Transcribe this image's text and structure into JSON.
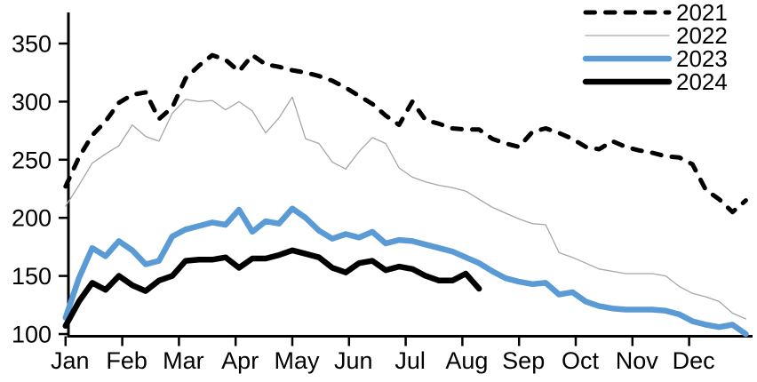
{
  "chart_data": {
    "type": "line",
    "title": "",
    "xlabel": "",
    "ylabel": "",
    "x_resolution": "weekly",
    "x_axis": {
      "months": [
        "Jan",
        "Feb",
        "Mar",
        "Apr",
        "May",
        "Jun",
        "Jul",
        "Aug",
        "Sep",
        "Oct",
        "Nov",
        "Dec"
      ]
    },
    "y_axis": {
      "min": 100,
      "max": 350,
      "ticks": [
        350,
        300,
        250,
        200,
        150,
        100
      ]
    },
    "grid": "off",
    "legend": {
      "position": "top-right",
      "entries": [
        "2021",
        "2022",
        "2023",
        "2024"
      ]
    },
    "series": [
      {
        "name": "2021",
        "color": "#000000",
        "style": "dashed",
        "width": 5,
        "values": [
          227,
          252,
          271,
          283,
          299,
          306,
          308,
          285,
          295,
          320,
          331,
          340,
          336,
          326,
          340,
          332,
          330,
          327,
          325,
          322,
          318,
          312,
          305,
          298,
          288,
          280,
          300,
          284,
          281,
          277,
          276,
          276,
          268,
          264,
          261,
          274,
          277,
          273,
          268,
          261,
          259,
          266,
          261,
          258,
          256,
          253,
          252,
          246,
          224,
          216,
          205,
          215
        ]
      },
      {
        "name": "2022",
        "color": "#a6a6a6",
        "style": "solid",
        "width": 1.3,
        "values": [
          210,
          228,
          247,
          255,
          262,
          280,
          270,
          266,
          290,
          302,
          300,
          301,
          293,
          300,
          292,
          273,
          286,
          304,
          268,
          264,
          248,
          242,
          257,
          269,
          264,
          243,
          235,
          231,
          228,
          226,
          223,
          216,
          209,
          204,
          199,
          195,
          194,
          170,
          166,
          161,
          156,
          154,
          152,
          152,
          152,
          150,
          141,
          135,
          132,
          128,
          118,
          113
        ]
      },
      {
        "name": "2023",
        "color": "#5b9bd5",
        "style": "solid",
        "width": 6.5,
        "values": [
          114,
          148,
          174,
          167,
          180,
          172,
          160,
          163,
          184,
          190,
          193,
          196,
          194,
          207,
          188,
          197,
          195,
          208,
          200,
          189,
          182,
          186,
          183,
          188,
          178,
          181,
          180,
          177,
          174,
          171,
          166,
          161,
          154,
          148,
          145,
          143,
          144,
          134,
          136,
          128,
          124,
          122,
          121,
          121,
          121,
          120,
          117,
          111,
          108,
          106,
          108,
          100
        ]
      },
      {
        "name": "2024",
        "color": "#000000",
        "style": "solid",
        "width": 6.5,
        "values": [
          107,
          128,
          144,
          138,
          150,
          142,
          137,
          146,
          150,
          163,
          164,
          164,
          166,
          157,
          165,
          165,
          168,
          172,
          169,
          166,
          157,
          153,
          161,
          163,
          155,
          158,
          156,
          150,
          146,
          146,
          152,
          139
        ]
      }
    ]
  },
  "colors": {
    "axis": "#000000",
    "background": "#ffffff",
    "series_2021": "#000000",
    "series_2022": "#a6a6a6",
    "series_2023": "#5b9bd5",
    "series_2024": "#000000"
  }
}
